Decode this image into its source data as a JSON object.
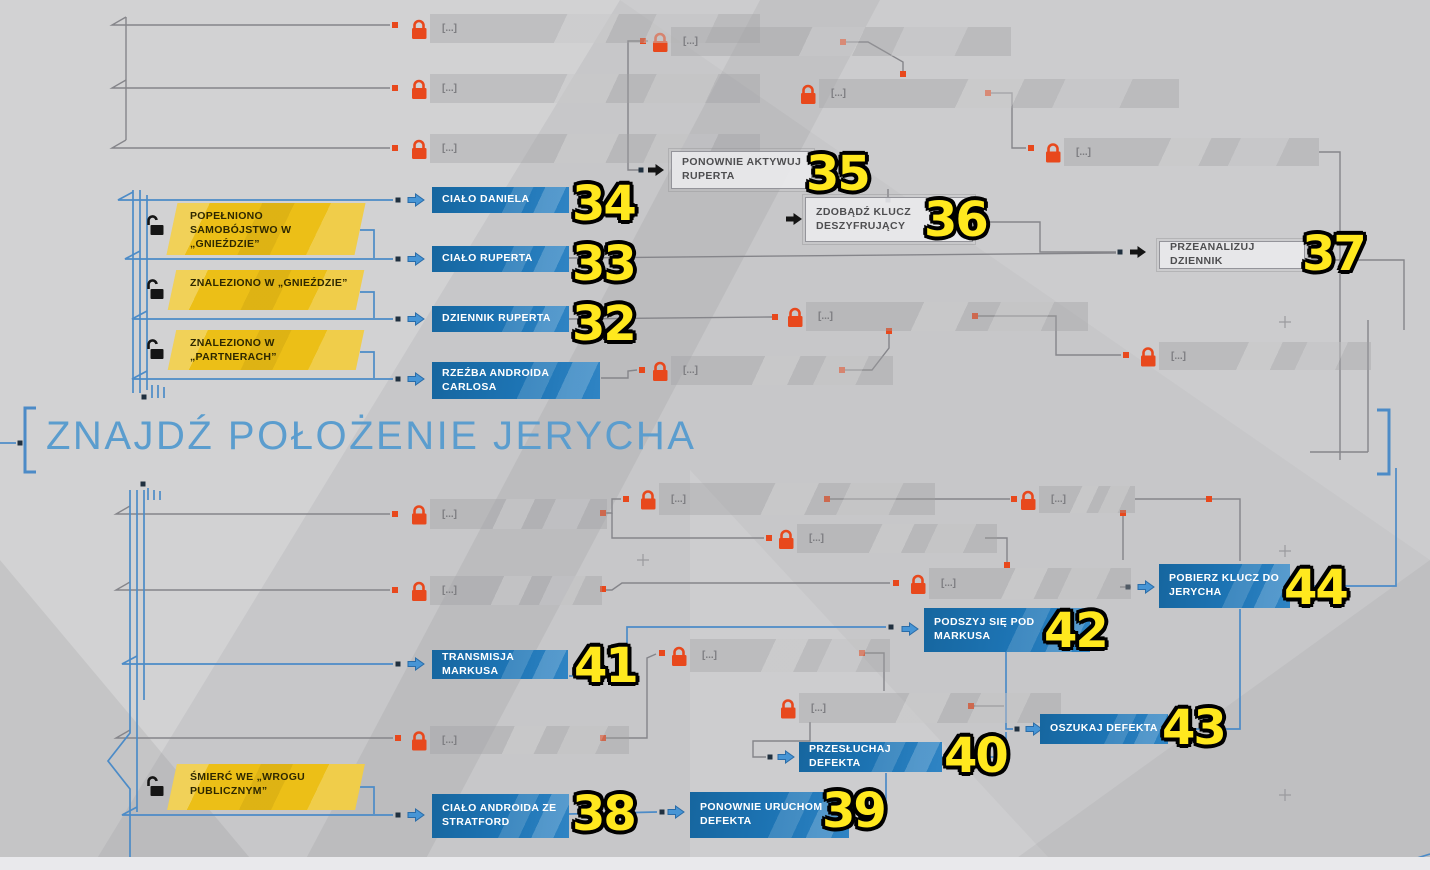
{
  "title": "ZNAJDŹ POŁOŻENIE JERYCHA",
  "locked_placeholder": "[...]",
  "completed": [
    {
      "label": "CIAŁO DANIELA",
      "badge": "34"
    },
    {
      "label": "CIAŁO RUPERTA",
      "badge": "33"
    },
    {
      "label": "DZIENNIK RUPERTA",
      "badge": "32"
    },
    {
      "label": "RZEŹBA ANDROIDA CARLOSA",
      "badge": ""
    },
    {
      "label": "TRANSMISJA MARKUSA",
      "badge": "41"
    },
    {
      "label": "PODSZYJ SIĘ POD MARKUSA",
      "badge": "42"
    },
    {
      "label": "POBIERZ KLUCZ DO JERYCHA",
      "badge": "44"
    },
    {
      "label": "OSZUKAJ DEFEKTA",
      "badge": "43"
    },
    {
      "label": "PRZESŁUCHAJ DEFEKTA",
      "badge": "40"
    },
    {
      "label": "CIAŁO ANDROIDA ZE STRATFORD",
      "badge": "38"
    },
    {
      "label": "PONOWNIE URUCHOM DEFEKTA",
      "badge": "39"
    }
  ],
  "objectives": [
    {
      "label": "PONOWNIE AKTYWUJ RUPERTA",
      "badge": "35"
    },
    {
      "label": "ZDOBĄDŹ KLUCZ DESZYFRUJĄCY",
      "badge": "36"
    },
    {
      "label": "PRZEANALIZUJ DZIENNIK",
      "badge": "37"
    }
  ],
  "clues": [
    {
      "label": "POPEŁNIONO SAMOBÓJSTWO W „GNIEŹDZIE”"
    },
    {
      "label": "ZNALEZIONO W „GNIEŹDZIE”"
    },
    {
      "label": "ZNALEZIONO W „PARTNERACH”"
    },
    {
      "label": "ŚMIERĆ WE „WROGU PUBLICZNYM”"
    }
  ],
  "colors": {
    "node_blue": "#1d74b4",
    "node_locked_lock": "#e8481c",
    "clue_yellow": "#ecbf17",
    "title_blue": "#5b9dce",
    "wire_blue": "#4c8bc7",
    "wire_gray": "#85858a",
    "badge_yellow": "#ffe81e"
  }
}
